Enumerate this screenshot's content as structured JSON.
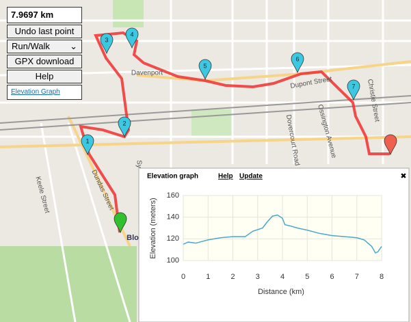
{
  "controls": {
    "distance": "7.9697 km",
    "undo": "Undo last point",
    "mode": "Run/Walk",
    "gpx": "GPX download",
    "help": "Help",
    "elevation_link": "Elevation Graph"
  },
  "map": {
    "labels": [
      "Davenport",
      "Dupont Street",
      "Dovercourt Road",
      "Ossington Avenue",
      "Christie Street",
      "Keele Street",
      "Dundas Street",
      "Blo",
      "Sy"
    ],
    "markers": [
      "1",
      "2",
      "3",
      "4",
      "5",
      "6",
      "7"
    ]
  },
  "popup": {
    "title": "Elevation graph",
    "help": "Help",
    "update": "Update",
    "close": "✖"
  },
  "chart_data": {
    "type": "line",
    "x_label": "Distance (km)",
    "y_label": "Elevation (meters)",
    "x": [
      0,
      0.2,
      0.5,
      1,
      1.5,
      2,
      2.5,
      2.8,
      3.2,
      3.4,
      3.6,
      3.8,
      4.0,
      4.1,
      4.3,
      4.6,
      5,
      5.5,
      6,
      6.5,
      7,
      7.3,
      7.6,
      7.75,
      7.85,
      8
    ],
    "values": [
      115,
      117,
      116,
      119,
      121,
      122,
      122,
      127,
      130,
      136,
      141,
      142,
      139,
      133,
      132,
      130,
      128,
      125,
      123,
      122,
      121,
      119,
      113,
      107,
      108,
      113
    ],
    "color": "#4aa8c8",
    "xlim": [
      0,
      8
    ],
    "ylim": [
      100,
      160
    ],
    "xticks": [
      0,
      1,
      2,
      3,
      4,
      5,
      6,
      7,
      8
    ],
    "yticks": [
      100,
      120,
      140,
      160
    ],
    "grid": true
  }
}
